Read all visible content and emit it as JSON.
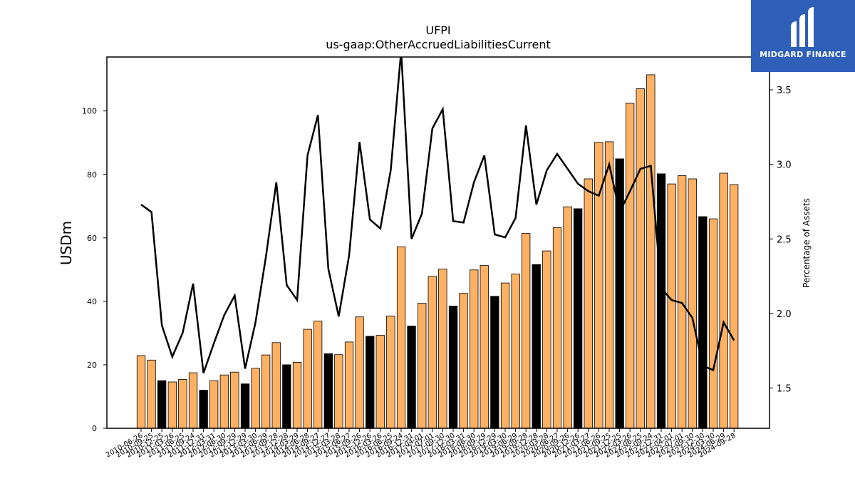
{
  "chart_data": {
    "type": "bar",
    "title": "UFPI",
    "subtitle": "us-gaap:OtherAccruedLiabilitiesCurrent",
    "ylabel": "USDm",
    "y2label": "Percentage of Assets",
    "ylim": [
      0,
      117
    ],
    "y2lim": [
      1.23,
      3.72
    ],
    "yticks": [
      0,
      20,
      40,
      60,
      80,
      100
    ],
    "y2ticks": [
      1.5,
      2.0,
      2.5,
      3.0,
      3.5
    ],
    "categories": [
      "2010-06-26",
      "2010-09-25",
      "2010-12-25",
      "2011-03-26",
      "2011-06-25",
      "2011-09-24",
      "2011-12-31",
      "2012-03-31",
      "2012-06-30",
      "2012-09-29",
      "2012-12-29",
      "2013-03-30",
      "2013-06-29",
      "2013-09-28",
      "2013-12-28",
      "2014-03-29",
      "2014-06-28",
      "2014-09-27",
      "2014-12-27",
      "2015-03-28",
      "2015-06-27",
      "2015-09-26",
      "2015-12-26",
      "2016-03-26",
      "2016-06-25",
      "2016-09-24",
      "2016-12-31",
      "2017-04-01",
      "2017-07-01",
      "2017-09-30",
      "2017-12-30",
      "2018-03-31",
      "2018-06-30",
      "2018-09-29",
      "2018-12-29",
      "2019-03-30",
      "2019-06-29",
      "2019-09-28",
      "2019-12-28",
      "2020-03-28",
      "2020-06-27",
      "2020-09-26",
      "2020-12-26",
      "2021-03-27",
      "2021-06-26",
      "2021-09-25",
      "2021-12-25",
      "2022-03-26",
      "2022-06-25",
      "2022-09-24",
      "2022-12-31",
      "2023-04-01",
      "2023-07-01",
      "2023-09-30",
      "2023-12-30",
      "2024-03-30",
      "2024-06-29",
      "2024-09-28"
    ],
    "values": [
      22.9,
      21.5,
      15.0,
      14.6,
      15.4,
      17.5,
      12.0,
      15.0,
      16.8,
      17.7,
      14.0,
      18.9,
      23.1,
      27.0,
      20.0,
      20.8,
      31.2,
      33.8,
      23.5,
      23.2,
      27.2,
      35.1,
      29.0,
      29.3,
      35.4,
      57.2,
      32.2,
      39.4,
      47.9,
      50.2,
      38.5,
      42.5,
      49.9,
      51.3,
      41.6,
      45.8,
      48.6,
      61.4,
      51.6,
      55.9,
      63.2,
      69.8,
      69.2,
      78.6,
      90.1,
      90.3,
      84.9,
      102.4,
      107.0,
      111.4,
      80.2,
      77.0,
      79.6,
      78.6,
      66.7,
      66.0,
      80.4,
      76.8
    ],
    "q4_flags": [
      0,
      0,
      1,
      0,
      0,
      0,
      1,
      0,
      0,
      0,
      1,
      0,
      0,
      0,
      1,
      0,
      0,
      0,
      1,
      0,
      0,
      0,
      1,
      0,
      0,
      0,
      1,
      0,
      0,
      0,
      1,
      0,
      0,
      0,
      1,
      0,
      0,
      0,
      1,
      0,
      0,
      0,
      1,
      0,
      0,
      0,
      1,
      0,
      0,
      0,
      1,
      0,
      0,
      0,
      1,
      0,
      0,
      0
    ],
    "pct_assets": [
      2.73,
      2.68,
      1.92,
      1.71,
      1.87,
      2.2,
      1.6,
      1.8,
      1.99,
      2.12,
      1.63,
      1.94,
      2.38,
      2.88,
      2.19,
      2.09,
      3.06,
      3.33,
      2.3,
      1.98,
      2.39,
      3.15,
      2.63,
      2.57,
      2.96,
      3.76,
      2.5,
      2.67,
      3.24,
      3.37,
      2.62,
      2.61,
      2.88,
      3.06,
      2.53,
      2.51,
      2.64,
      3.26,
      2.73,
      2.96,
      3.07,
      2.97,
      2.87,
      2.82,
      2.79,
      3.0,
      2.68,
      2.82,
      2.97,
      2.99,
      2.17,
      2.09,
      2.07,
      1.97,
      1.65,
      1.62,
      1.94,
      1.82
    ],
    "colors": {
      "bar": "#ffb163",
      "bar_q4": "#000000",
      "bar_edge": "#000000",
      "line": "#000000"
    },
    "grid": false
  },
  "logo": {
    "text": "MIDGARD FINANCE",
    "bg": "#2f5fb8"
  }
}
